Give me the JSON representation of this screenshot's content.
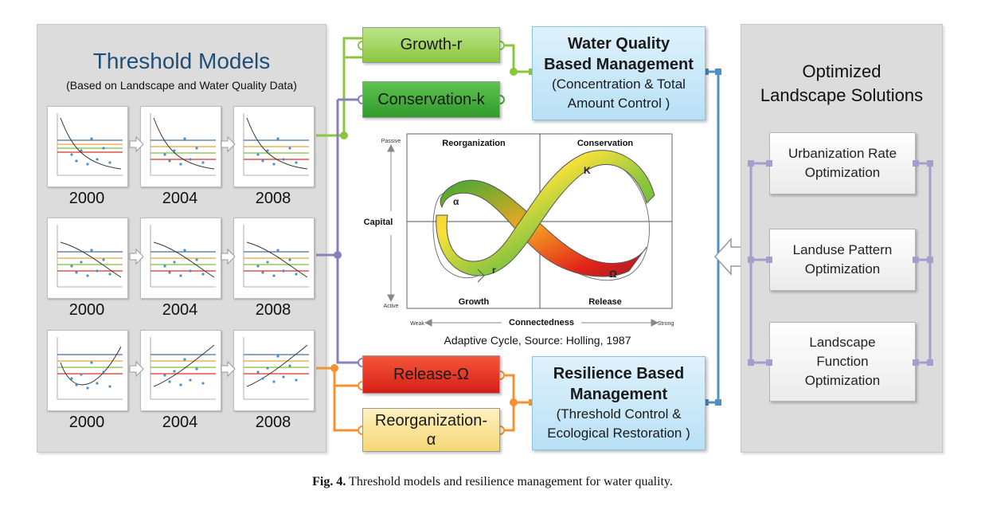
{
  "threshold": {
    "title": "Threshold Models",
    "subtitle": "(Based on Landscape and Water Quality Data)",
    "years": [
      "2000",
      "2004",
      "2008",
      "2000",
      "2004",
      "2008",
      "2000",
      "2004",
      "2008"
    ]
  },
  "phases": {
    "growth": "Growth-r",
    "conservation": "Conservation-k",
    "release": "Release-Ω",
    "reorg_line1": "Reorganization-",
    "reorg_line2": "α"
  },
  "water_quality": {
    "line1": "Water Quality",
    "line2": "Based Management",
    "line3": "(Concentration & Total",
    "line4": "Amount Control )"
  },
  "resilience": {
    "line1": "Resilience Based",
    "line2": "Management",
    "line3": "(Threshold Control &",
    "line4": "Ecological Restoration  )"
  },
  "optimized": {
    "title_line1": "Optimized",
    "title_line2": "Landscape Solutions",
    "items": [
      "Urbanization Rate\nOptimization",
      "Landuse Pattern\nOptimization",
      "Landscape\nFunction\nOptimization"
    ]
  },
  "adaptive": {
    "quadrants": [
      "Reorganization",
      "Conservation",
      "Growth",
      "Release"
    ],
    "y_axis_label": "Capital",
    "y_top": "Passive",
    "y_bottom": "Active",
    "x_axis_label": "Connectedness",
    "x_left": "Weak",
    "x_right": "Strong",
    "symbols": [
      "α",
      "K",
      "r",
      "Ω"
    ],
    "caption": "Adaptive Cycle, Source: Holling, 1987"
  },
  "figure_caption": {
    "label": "Fig. 4.",
    "text": "Threshold models and resilience management for water quality."
  },
  "colors": {
    "growth": "#8cc63f",
    "conservation": "#3aaa35",
    "release": "#e2231a",
    "reorganization": "#fbe18a",
    "management": "#bfe3f7",
    "connector_green": "#8cc63f",
    "connector_purple": "#8c7fbf",
    "connector_orange": "#f39233",
    "connector_blue": "#4f8fc4"
  }
}
